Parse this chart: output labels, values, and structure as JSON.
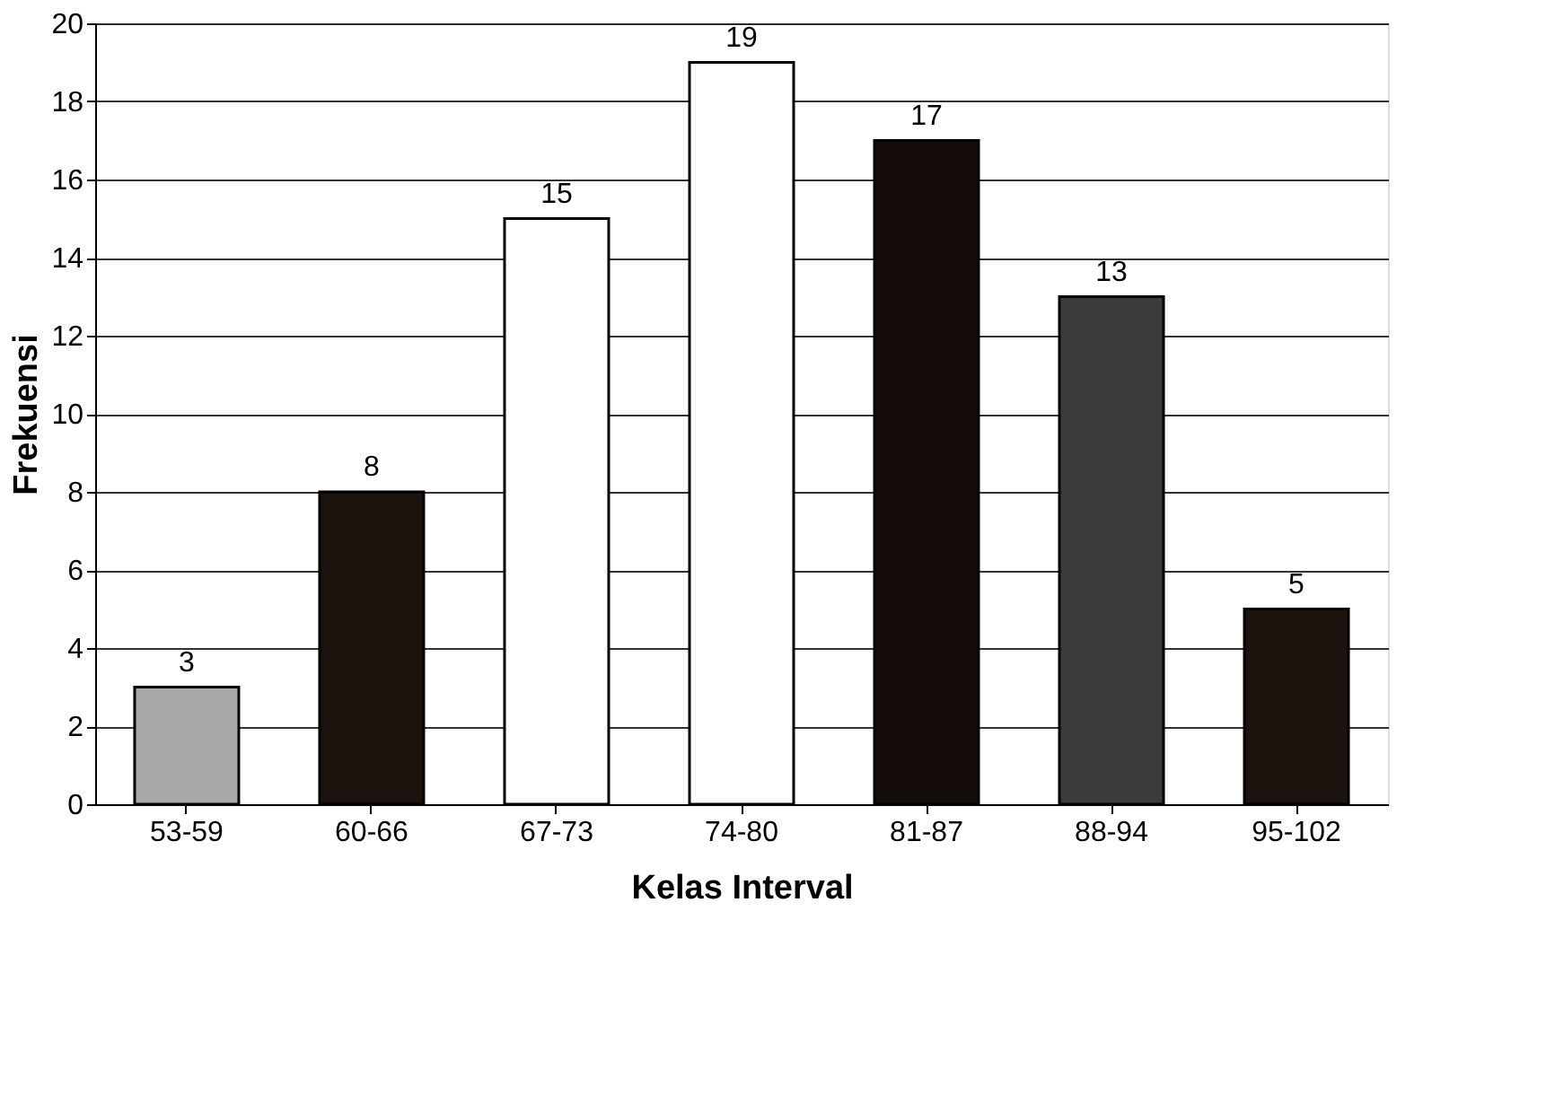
{
  "chart_data": {
    "type": "bar",
    "xlabel": "Kelas Interval",
    "ylabel": "Frekuensi",
    "categories": [
      "53-59",
      "60-66",
      "67-73",
      "74-80",
      "81-87",
      "88-94",
      "95-102"
    ],
    "values": [
      3,
      8,
      15,
      19,
      17,
      13,
      5
    ],
    "colors": [
      "#a8a8a8",
      "#1c120e",
      "#ffffff",
      "#ffffff",
      "#140c0a",
      "#3c3c3c",
      "#1c120e"
    ],
    "ylim": [
      0,
      20
    ],
    "yticks": [
      0,
      2,
      4,
      6,
      8,
      10,
      12,
      14,
      16,
      18,
      20
    ],
    "grid": "y",
    "data_labels": true
  }
}
